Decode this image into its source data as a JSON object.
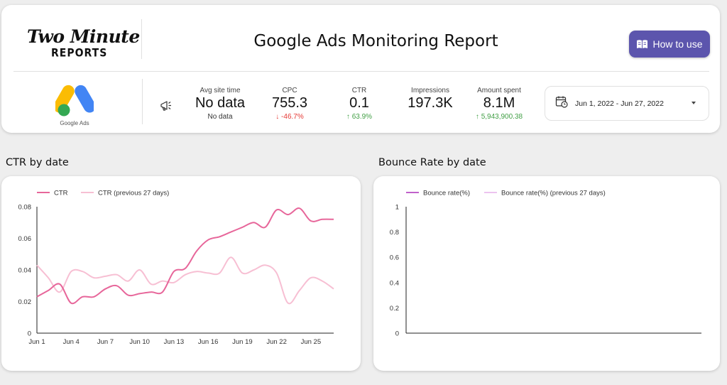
{
  "header": {
    "logo_line1": "Two Minute",
    "logo_line2": "REPORTS",
    "title": "Google Ads Monitoring Report",
    "how_to_use_label": "How to use",
    "accent_color": "#5c55ad"
  },
  "source": {
    "logo_label": "Google Ads",
    "icon": "megaphone-icon"
  },
  "metrics": [
    {
      "label": "Avg site time",
      "value": "No data",
      "delta": "No data",
      "trend": "none"
    },
    {
      "label": "CPC",
      "value": "755.3",
      "delta": "-46.7%",
      "trend": "down"
    },
    {
      "label": "CTR",
      "value": "0.1",
      "delta": "63.9%",
      "trend": "up"
    },
    {
      "label": "Impressions",
      "value": "197.3K",
      "delta": "",
      "trend": "none"
    },
    {
      "label": "Amount spent",
      "value": "8.1M",
      "delta": "5,943,900.38",
      "trend": "up"
    }
  ],
  "date_range": {
    "label": "Jun 1, 2022 - Jun 27, 2022",
    "icon": "calendar-icon"
  },
  "sections": {
    "ctr_title": "CTR by date",
    "bounce_title": "Bounce Rate by date"
  },
  "chart_data": [
    {
      "type": "line",
      "x": [
        "Jun 1",
        "Jun 2",
        "Jun 3",
        "Jun 4",
        "Jun 5",
        "Jun 6",
        "Jun 7",
        "Jun 8",
        "Jun 9",
        "Jun 10",
        "Jun 11",
        "Jun 12",
        "Jun 13",
        "Jun 14",
        "Jun 15",
        "Jun 16",
        "Jun 17",
        "Jun 18",
        "Jun 19",
        "Jun 20",
        "Jun 21",
        "Jun 22",
        "Jun 23",
        "Jun 24",
        "Jun 25",
        "Jun 26",
        "Jun 27"
      ],
      "tick_labels": [
        "Jun 1",
        "Jun 4",
        "Jun 7",
        "Jun 10",
        "Jun 13",
        "Jun 16",
        "Jun 19",
        "Jun 22",
        "Jun 25"
      ],
      "y_ticks": [
        "0",
        "0.02",
        "0.04",
        "0.06",
        "0.08"
      ],
      "ylim": [
        0,
        0.08
      ],
      "series": [
        {
          "name": "CTR",
          "color": "#e7669a",
          "values": [
            0.023,
            0.027,
            0.031,
            0.019,
            0.023,
            0.023,
            0.028,
            0.03,
            0.024,
            0.025,
            0.026,
            0.026,
            0.039,
            0.041,
            0.052,
            0.059,
            0.061,
            0.064,
            0.067,
            0.07,
            0.067,
            0.078,
            0.075,
            0.079,
            0.071,
            0.072,
            0.072
          ]
        },
        {
          "name": "CTR (previous 27 days)",
          "color": "#f7bfd3",
          "values": [
            0.043,
            0.035,
            0.026,
            0.039,
            0.039,
            0.035,
            0.036,
            0.037,
            0.033,
            0.04,
            0.031,
            0.033,
            0.032,
            0.037,
            0.039,
            0.038,
            0.038,
            0.048,
            0.038,
            0.04,
            0.043,
            0.038,
            0.019,
            0.027,
            0.035,
            0.033,
            0.028
          ]
        }
      ]
    },
    {
      "type": "line",
      "y_ticks": [
        "0",
        "0.2",
        "0.4",
        "0.6",
        "0.8",
        "1"
      ],
      "ylim": [
        0,
        1
      ],
      "series": [
        {
          "name": "Bounce rate(%)",
          "color": "#c061cb",
          "values": []
        },
        {
          "name": "Bounce rate(%) (previous 27 days)",
          "color": "#ecc3ef",
          "values": []
        }
      ]
    }
  ]
}
